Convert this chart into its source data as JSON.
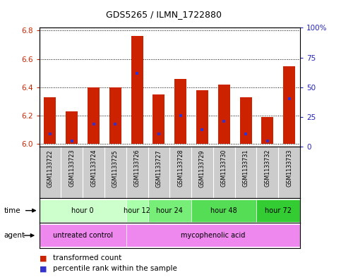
{
  "title": "GDS5265 / ILMN_1722880",
  "samples": [
    "GSM1133722",
    "GSM1133723",
    "GSM1133724",
    "GSM1133725",
    "GSM1133726",
    "GSM1133727",
    "GSM1133728",
    "GSM1133729",
    "GSM1133730",
    "GSM1133731",
    "GSM1133732",
    "GSM1133733"
  ],
  "bar_tops": [
    6.33,
    6.23,
    6.4,
    6.4,
    6.76,
    6.35,
    6.46,
    6.38,
    6.42,
    6.33,
    6.19,
    6.55
  ],
  "bar_bottoms": [
    6.0,
    6.0,
    6.0,
    6.0,
    6.0,
    6.0,
    6.0,
    6.0,
    6.0,
    6.0,
    6.0,
    6.0
  ],
  "blue_markers": [
    6.07,
    6.02,
    6.14,
    6.14,
    6.5,
    6.07,
    6.2,
    6.1,
    6.16,
    6.07,
    6.02,
    6.32
  ],
  "ylim_left": [
    5.98,
    6.82
  ],
  "yticks_left": [
    6.0,
    6.2,
    6.4,
    6.6,
    6.8
  ],
  "yticks_right_vals": [
    0,
    25,
    50,
    75,
    100
  ],
  "yticks_right_labels": [
    "0",
    "25",
    "50",
    "75",
    "100%"
  ],
  "bar_color": "#cc2200",
  "blue_color": "#3333cc",
  "left_ycolor": "#cc2200",
  "right_ycolor": "#2222bb",
  "grid_color": "#000000",
  "time_groups": [
    {
      "label": "hour 0",
      "start": 0,
      "end": 4,
      "color": "#ccffcc"
    },
    {
      "label": "hour 12",
      "start": 4,
      "end": 5,
      "color": "#aaffaa"
    },
    {
      "label": "hour 24",
      "start": 5,
      "end": 7,
      "color": "#77ee77"
    },
    {
      "label": "hour 48",
      "start": 7,
      "end": 10,
      "color": "#55dd55"
    },
    {
      "label": "hour 72",
      "start": 10,
      "end": 12,
      "color": "#33cc33"
    }
  ],
  "legend_red": "transformed count",
  "legend_blue": "percentile rank within the sample",
  "xlabel_time": "time",
  "xlabel_agent": "agent",
  "bar_width": 0.55,
  "bg_color": "#ffffff",
  "spine_color": "#000000",
  "sample_bg": "#cccccc",
  "untreated_color": "#ee88ee",
  "myco_color": "#ee88ee"
}
